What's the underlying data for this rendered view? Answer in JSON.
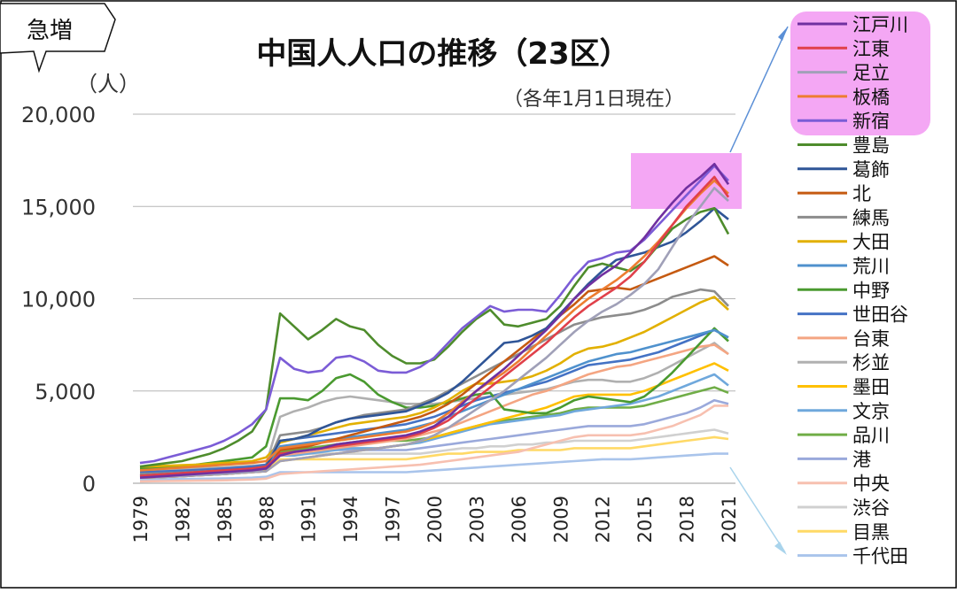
{
  "badge": {
    "label": "急増"
  },
  "chart_data": {
    "type": "line",
    "title": "中国人人口の推移（23区）",
    "subtitle": "（各年1月1日現在）",
    "ylabel": "（人）",
    "xlabel": "",
    "ylim": [
      0,
      20000
    ],
    "yticks": [
      0,
      5000,
      10000,
      15000,
      20000
    ],
    "ytick_labels": [
      "0",
      "5,000",
      "10,000",
      "15,000",
      "20,000"
    ],
    "grid": true,
    "legend_position": "right",
    "highlight": {
      "legend_group": [
        "江戸川",
        "江東",
        "足立",
        "板橋",
        "新宿"
      ],
      "color": "#f4a7f4"
    },
    "x": [
      1979,
      1980,
      1981,
      1982,
      1983,
      1984,
      1985,
      1986,
      1987,
      1988,
      1989,
      1990,
      1991,
      1992,
      1993,
      1994,
      1995,
      1996,
      1997,
      1998,
      1999,
      2000,
      2001,
      2002,
      2003,
      2004,
      2005,
      2006,
      2007,
      2008,
      2009,
      2010,
      2011,
      2012,
      2013,
      2014,
      2015,
      2016,
      2017,
      2018,
      2019,
      2020,
      2021
    ],
    "xticks": [
      1979,
      1982,
      1985,
      1988,
      1991,
      1994,
      1997,
      2000,
      2003,
      2006,
      2009,
      2012,
      2015,
      2018,
      2021
    ],
    "series": [
      {
        "name": "江戸川",
        "color": "#7030a0",
        "values": [
          300,
          350,
          400,
          450,
          500,
          550,
          600,
          650,
          700,
          800,
          1500,
          1700,
          1800,
          1900,
          2100,
          2200,
          2300,
          2400,
          2500,
          2600,
          2800,
          3100,
          3600,
          4300,
          5000,
          5600,
          6200,
          6900,
          7600,
          8300,
          9100,
          10000,
          10700,
          11300,
          11800,
          12500,
          13300,
          14300,
          15200,
          16000,
          16600,
          17300,
          16200
        ]
      },
      {
        "name": "江東",
        "color": "#e0404a",
        "values": [
          400,
          450,
          500,
          550,
          600,
          650,
          700,
          750,
          800,
          900,
          1600,
          1700,
          1800,
          1900,
          2000,
          2100,
          2200,
          2300,
          2400,
          2500,
          2700,
          3000,
          3400,
          4000,
          4600,
          5200,
          5800,
          6400,
          7000,
          7600,
          8300,
          9000,
          9600,
          10100,
          10600,
          11200,
          12000,
          13000,
          14000,
          15000,
          15800,
          16600,
          15500
        ]
      },
      {
        "name": "足立",
        "color": "#a0a0b8",
        "values": [
          300,
          320,
          350,
          380,
          420,
          460,
          500,
          550,
          600,
          650,
          1200,
          1300,
          1400,
          1500,
          1600,
          1700,
          1800,
          1900,
          2000,
          2100,
          2300,
          2600,
          3000,
          3500,
          4000,
          4500,
          5000,
          5600,
          6200,
          6800,
          7500,
          8200,
          8800,
          9300,
          9700,
          10200,
          10800,
          11600,
          12800,
          14000,
          15000,
          16000,
          15300
        ]
      },
      {
        "name": "板橋",
        "color": "#ed7d31",
        "values": [
          700,
          750,
          800,
          850,
          900,
          950,
          1000,
          1050,
          1100,
          1200,
          1900,
          2000,
          2100,
          2200,
          2300,
          2400,
          2500,
          2600,
          2700,
          2800,
          3000,
          3300,
          3800,
          4400,
          5000,
          5500,
          6000,
          6600,
          7300,
          8000,
          8700,
          9400,
          10000,
          10500,
          11000,
          11600,
          12300,
          13100,
          14000,
          14900,
          15700,
          16400,
          15700
        ]
      },
      {
        "name": "新宿",
        "color": "#7b5cd6",
        "values": [
          1100,
          1200,
          1400,
          1600,
          1800,
          2000,
          2300,
          2700,
          3200,
          4000,
          6800,
          6200,
          6000,
          6100,
          6800,
          6900,
          6600,
          6100,
          6000,
          6000,
          6300,
          6800,
          7600,
          8400,
          9000,
          9600,
          9300,
          9400,
          9400,
          9300,
          10200,
          11200,
          12000,
          12200,
          12500,
          12600,
          13200,
          14000,
          14800,
          15600,
          16400,
          17200,
          16400
        ]
      },
      {
        "name": "豊島",
        "color": "#4e8c2c",
        "values": [
          900,
          1000,
          1100,
          1200,
          1400,
          1600,
          1900,
          2300,
          2800,
          4000,
          9200,
          8500,
          7800,
          8300,
          8900,
          8500,
          8300,
          7500,
          6900,
          6500,
          6500,
          6700,
          7400,
          8200,
          8900,
          9400,
          8600,
          8500,
          8700,
          8900,
          9600,
          10700,
          11700,
          11900,
          11700,
          11500,
          12000,
          12900,
          13800,
          14300,
          14700,
          14900,
          13500
        ]
      },
      {
        "name": "葛飾",
        "color": "#2f5597",
        "values": [
          400,
          450,
          500,
          550,
          600,
          650,
          700,
          750,
          800,
          900,
          2300,
          2400,
          2600,
          3000,
          3300,
          3500,
          3600,
          3700,
          3800,
          3900,
          4200,
          4500,
          4900,
          5500,
          6200,
          6900,
          7600,
          7700,
          8000,
          8400,
          9200,
          10000,
          10800,
          11500,
          12100,
          12300,
          12500,
          12800,
          13100,
          13600,
          14200,
          14900,
          14300
        ]
      },
      {
        "name": "北",
        "color": "#c55a11",
        "values": [
          300,
          320,
          350,
          380,
          420,
          460,
          500,
          550,
          600,
          650,
          1800,
          1900,
          2000,
          2200,
          2400,
          2600,
          2800,
          3000,
          3200,
          3400,
          3600,
          3900,
          4300,
          4800,
          5400,
          6000,
          6600,
          7200,
          7800,
          8400,
          9100,
          9700,
          10400,
          10500,
          10600,
          10500,
          10800,
          11100,
          11400,
          11700,
          12000,
          12300,
          11800
        ]
      },
      {
        "name": "練馬",
        "color": "#8c8c8c",
        "values": [
          500,
          520,
          550,
          580,
          620,
          660,
          700,
          750,
          800,
          900,
          2600,
          2700,
          2800,
          3000,
          3300,
          3500,
          3700,
          3800,
          3900,
          4000,
          4300,
          4600,
          5000,
          5400,
          5800,
          6200,
          6600,
          7000,
          7400,
          7800,
          8200,
          8600,
          8800,
          9000,
          9100,
          9200,
          9400,
          9700,
          10100,
          10300,
          10500,
          10400,
          9600
        ]
      },
      {
        "name": "大田",
        "color": "#e2b000",
        "values": [
          900,
          920,
          950,
          980,
          1000,
          1050,
          1100,
          1150,
          1200,
          1400,
          2200,
          2400,
          2600,
          2800,
          3000,
          3200,
          3300,
          3400,
          3500,
          3600,
          3800,
          4100,
          4500,
          5000,
          5400,
          5400,
          5500,
          5600,
          5800,
          6100,
          6500,
          7000,
          7300,
          7400,
          7600,
          7900,
          8200,
          8600,
          9000,
          9400,
          9800,
          10100,
          9400
        ]
      },
      {
        "name": "荒川",
        "color": "#4f91cd",
        "values": [
          400,
          420,
          450,
          480,
          520,
          560,
          600,
          650,
          700,
          800,
          2000,
          2100,
          2200,
          2300,
          2400,
          2500,
          2600,
          2700,
          2800,
          2900,
          3100,
          3300,
          3600,
          3900,
          4200,
          4500,
          4800,
          5100,
          5400,
          5700,
          6000,
          6300,
          6600,
          6800,
          7000,
          7100,
          7300,
          7500,
          7700,
          7900,
          8100,
          8300,
          7900
        ]
      },
      {
        "name": "中野",
        "color": "#4a9a30",
        "values": [
          800,
          850,
          900,
          950,
          1000,
          1100,
          1200,
          1300,
          1400,
          2000,
          4600,
          4600,
          4500,
          5000,
          5700,
          5900,
          5500,
          4800,
          4400,
          4100,
          4100,
          4200,
          4400,
          4600,
          4800,
          4900,
          4000,
          3900,
          3800,
          3800,
          4100,
          4500,
          4700,
          4600,
          4500,
          4400,
          4700,
          5300,
          6000,
          6800,
          7600,
          8400,
          7700
        ]
      },
      {
        "name": "世田谷",
        "color": "#4472c4",
        "values": [
          600,
          620,
          650,
          680,
          720,
          760,
          800,
          850,
          900,
          1000,
          2300,
          2400,
          2500,
          2600,
          2700,
          2800,
          2900,
          3000,
          3100,
          3200,
          3400,
          3600,
          3900,
          4200,
          4500,
          4700,
          4900,
          5100,
          5300,
          5500,
          5800,
          6100,
          6400,
          6500,
          6600,
          6700,
          6900,
          7100,
          7400,
          7700,
          8000,
          8300,
          7900
        ]
      },
      {
        "name": "台東",
        "color": "#f4a582",
        "values": [
          500,
          520,
          550,
          580,
          600,
          630,
          660,
          700,
          740,
          800,
          1500,
          1600,
          1700,
          1800,
          1900,
          2000,
          2100,
          2200,
          2300,
          2400,
          2600,
          2800,
          3000,
          3300,
          3600,
          3900,
          4200,
          4500,
          4800,
          5000,
          5300,
          5600,
          5900,
          6100,
          6300,
          6400,
          6600,
          6800,
          7000,
          7200,
          7400,
          7500,
          7000
        ]
      },
      {
        "name": "杉並",
        "color": "#b0b0b0",
        "values": [
          700,
          720,
          750,
          780,
          800,
          830,
          860,
          900,
          950,
          1000,
          3600,
          3900,
          4100,
          4400,
          4600,
          4700,
          4600,
          4500,
          4400,
          4300,
          4300,
          4300,
          4400,
          4500,
          4600,
          4700,
          4800,
          4900,
          5000,
          5100,
          5300,
          5500,
          5600,
          5600,
          5500,
          5500,
          5700,
          6000,
          6400,
          6800,
          7200,
          7600,
          7000
        ]
      },
      {
        "name": "墨田",
        "color": "#ffc000",
        "values": [
          300,
          320,
          350,
          380,
          420,
          460,
          500,
          550,
          600,
          650,
          1200,
          1300,
          1400,
          1500,
          1600,
          1700,
          1800,
          1900,
          2000,
          2100,
          2300,
          2500,
          2700,
          2900,
          3100,
          3300,
          3500,
          3700,
          3900,
          4100,
          4400,
          4700,
          4800,
          4800,
          4800,
          4800,
          5000,
          5300,
          5600,
          5900,
          6200,
          6500,
          6100
        ]
      },
      {
        "name": "文京",
        "color": "#6fa8dc",
        "values": [
          400,
          420,
          450,
          480,
          520,
          560,
          600,
          650,
          700,
          800,
          1500,
          1500,
          1600,
          1700,
          1800,
          1900,
          1900,
          1900,
          2000,
          2100,
          2200,
          2400,
          2600,
          2800,
          3000,
          3200,
          3300,
          3400,
          3500,
          3600,
          3700,
          3900,
          4000,
          4100,
          4200,
          4300,
          4500,
          4700,
          5000,
          5300,
          5600,
          5900,
          5300
        ]
      },
      {
        "name": "品川",
        "color": "#70ad47",
        "values": [
          500,
          520,
          550,
          580,
          600,
          630,
          660,
          700,
          740,
          800,
          1700,
          1800,
          1900,
          2000,
          2100,
          2200,
          2300,
          2300,
          2300,
          2300,
          2400,
          2500,
          2700,
          2900,
          3100,
          3300,
          3400,
          3500,
          3600,
          3700,
          3800,
          4000,
          4100,
          4100,
          4100,
          4100,
          4200,
          4400,
          4600,
          4800,
          5000,
          5200,
          4900
        ]
      },
      {
        "name": "港",
        "color": "#9aa9db",
        "values": [
          600,
          620,
          650,
          680,
          720,
          760,
          800,
          850,
          900,
          1000,
          1700,
          1700,
          1700,
          1800,
          1800,
          1800,
          1800,
          1800,
          1800,
          1800,
          1900,
          2000,
          2100,
          2200,
          2300,
          2400,
          2500,
          2600,
          2700,
          2800,
          2900,
          3000,
          3100,
          3100,
          3100,
          3100,
          3200,
          3400,
          3600,
          3800,
          4100,
          4500,
          4300
        ]
      },
      {
        "name": "中央",
        "color": "#f7c0b0",
        "values": [
          100,
          110,
          120,
          130,
          140,
          150,
          160,
          180,
          200,
          250,
          500,
          550,
          600,
          650,
          700,
          750,
          800,
          850,
          900,
          950,
          1000,
          1100,
          1200,
          1300,
          1400,
          1500,
          1600,
          1700,
          1900,
          2100,
          2300,
          2500,
          2600,
          2600,
          2600,
          2600,
          2700,
          2900,
          3100,
          3400,
          3700,
          4200,
          4200
        ]
      },
      {
        "name": "渋谷",
        "color": "#d0d0d0",
        "values": [
          500,
          520,
          550,
          580,
          600,
          630,
          660,
          700,
          740,
          800,
          1600,
          1600,
          1600,
          1600,
          1600,
          1600,
          1600,
          1600,
          1600,
          1600,
          1600,
          1700,
          1800,
          1900,
          1900,
          2000,
          2000,
          2100,
          2100,
          2200,
          2200,
          2300,
          2300,
          2300,
          2300,
          2300,
          2400,
          2500,
          2600,
          2700,
          2800,
          2900,
          2700
        ]
      },
      {
        "name": "目黒",
        "color": "#ffd966",
        "values": [
          400,
          420,
          450,
          480,
          500,
          530,
          560,
          600,
          640,
          700,
          1300,
          1300,
          1300,
          1300,
          1300,
          1300,
          1300,
          1300,
          1300,
          1300,
          1400,
          1500,
          1600,
          1600,
          1700,
          1700,
          1700,
          1800,
          1800,
          1800,
          1800,
          1900,
          1900,
          1900,
          1900,
          1900,
          2000,
          2100,
          2200,
          2300,
          2400,
          2500,
          2400
        ]
      },
      {
        "name": "千代田",
        "color": "#a9c4eb",
        "values": [
          200,
          210,
          220,
          230,
          240,
          250,
          260,
          280,
          300,
          350,
          600,
          600,
          600,
          600,
          600,
          600,
          600,
          600,
          600,
          600,
          650,
          700,
          750,
          800,
          850,
          900,
          950,
          1000,
          1050,
          1100,
          1150,
          1200,
          1250,
          1300,
          1300,
          1300,
          1350,
          1400,
          1450,
          1500,
          1550,
          1600,
          1600
        ]
      }
    ]
  }
}
